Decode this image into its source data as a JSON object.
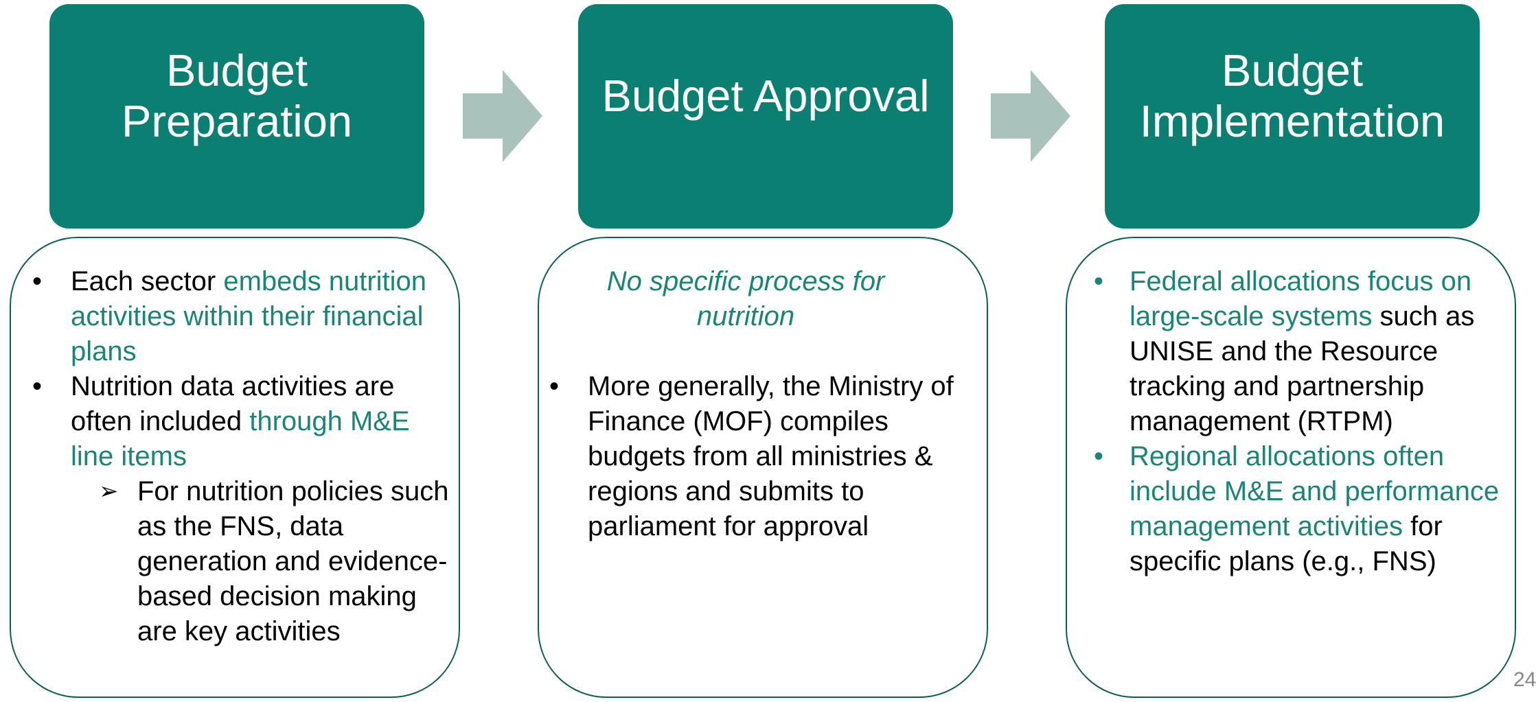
{
  "columns": [
    {
      "title": "Budget Preparation",
      "note": null,
      "bullets": [
        {
          "segments": [
            {
              "text": "Each sector ",
              "color": "#000000"
            },
            {
              "text": "embeds nutrition activities within their financial plans",
              "color": "#1a8577"
            }
          ]
        },
        {
          "segments": [
            {
              "text": "Nutrition data activities are often included ",
              "color": "#000000"
            },
            {
              "text": "through M&E line items",
              "color": "#1a8577"
            }
          ],
          "sub_bullets": [
            {
              "segments": [
                {
                  "text": "For nutrition policies such as the FNS, data generation and evidence-based decision making are key activities",
                  "color": "#000000"
                }
              ]
            }
          ]
        }
      ]
    },
    {
      "title": "Budget Approval",
      "note": "No specific process for nutrition",
      "bullets": [
        {
          "segments": [
            {
              "text": "More generally, the Ministry of Finance (MOF) compiles budgets from all ministries & regions and submits to parliament for approval",
              "color": "#000000"
            }
          ]
        }
      ]
    },
    {
      "title": "Budget Implementation",
      "note": null,
      "bullets": [
        {
          "segments": [
            {
              "text": "Federal allocations focus on large-scale systems",
              "color": "#1a8577"
            },
            {
              "text": " such as UNISE and the Resource tracking and partnership management (RTPM)",
              "color": "#000000"
            }
          ]
        },
        {
          "segments": [
            {
              "text": "Regional allocations often include M&E and performance management activities",
              "color": "#1a8577"
            },
            {
              "text": " for specific plans (e.g., FNS)",
              "color": "#000000"
            }
          ]
        }
      ]
    }
  ],
  "page_number": "24"
}
